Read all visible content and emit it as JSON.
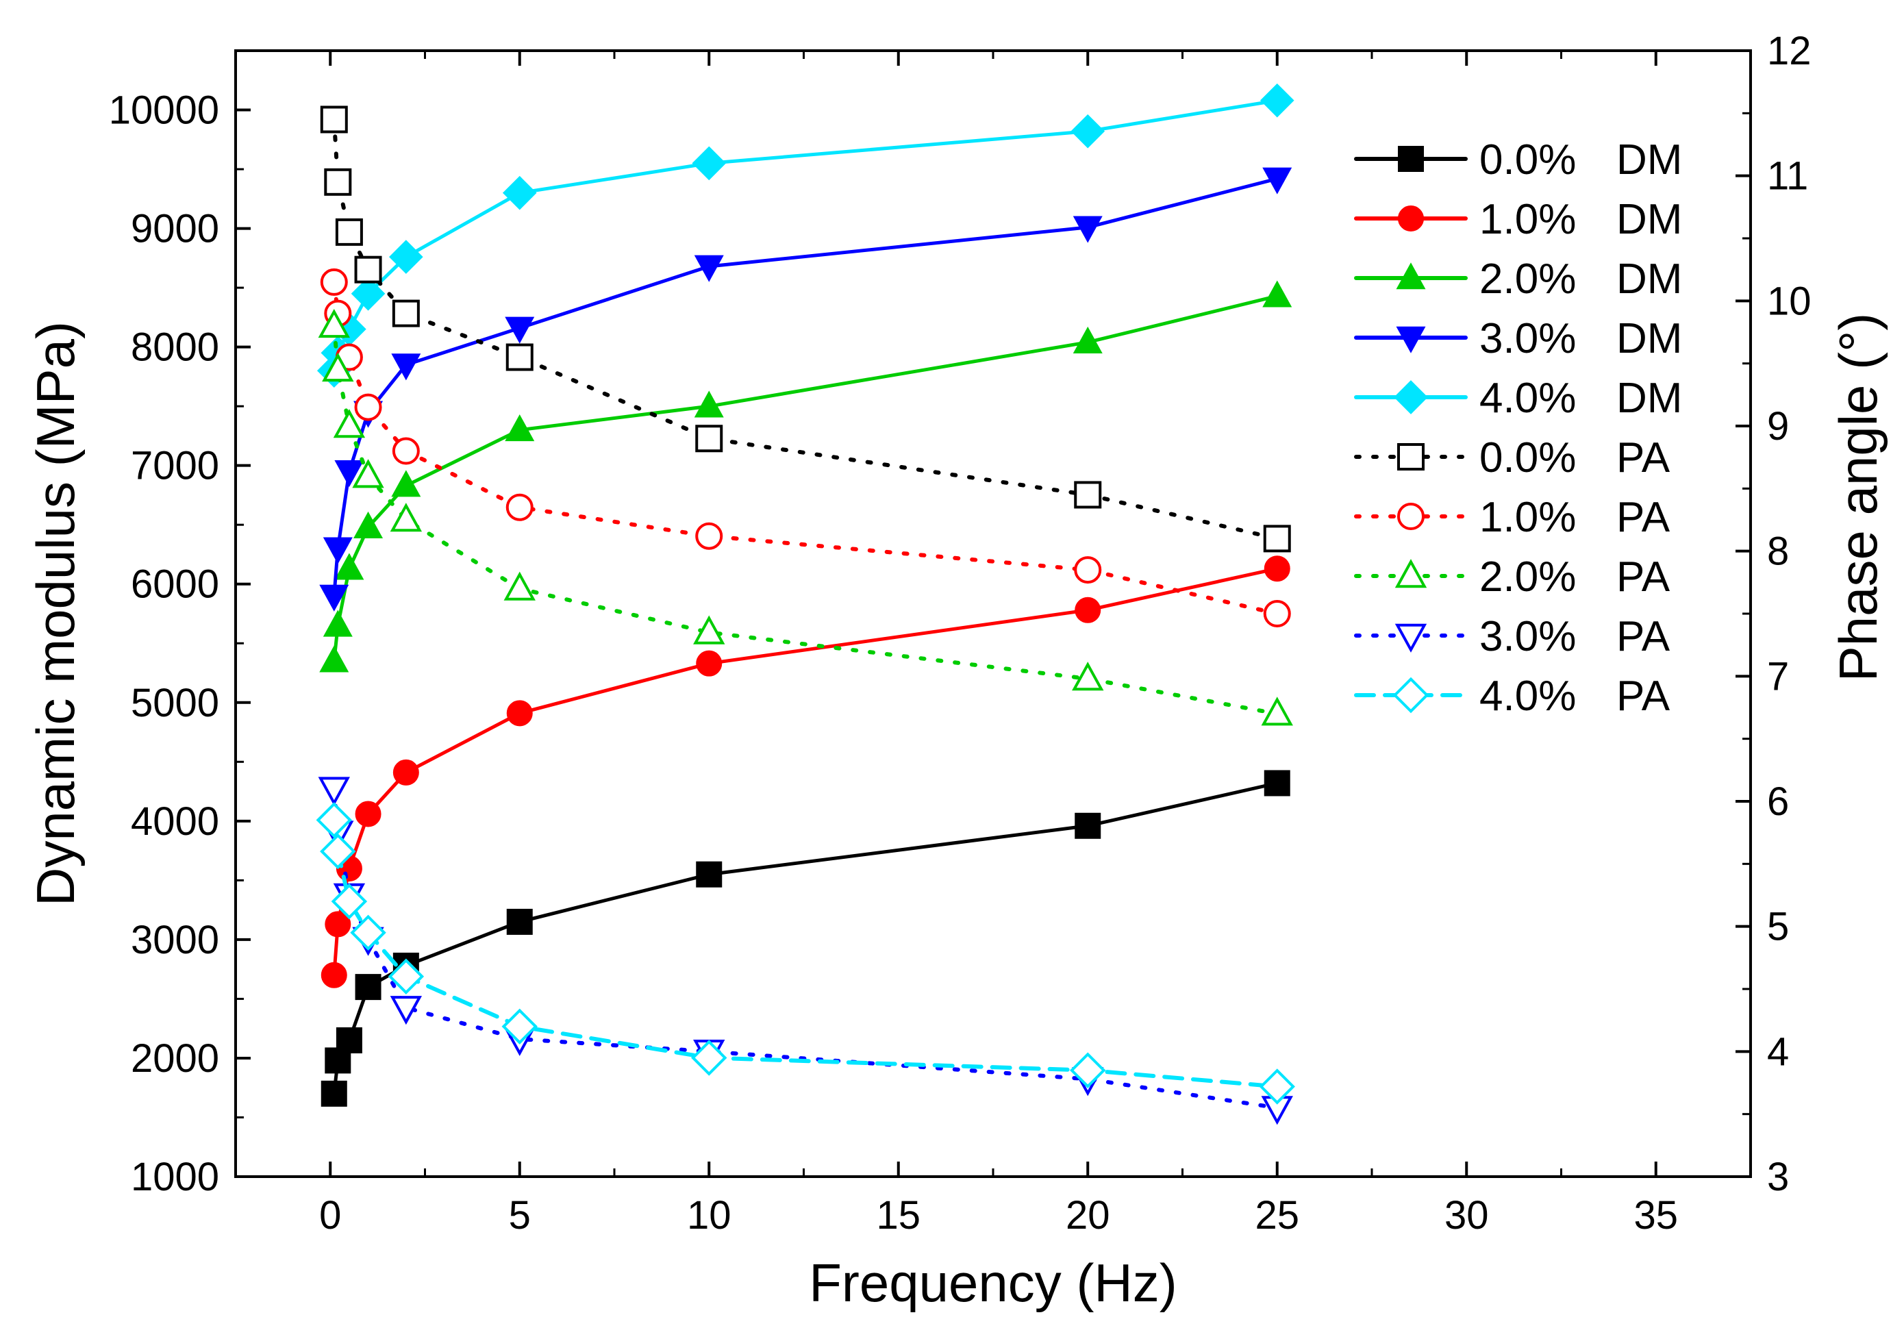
{
  "chart_data": {
    "type": "line",
    "title": "",
    "xlabel": "Frequency (Hz)",
    "ylabel": "Dynamic modulus (MPa)",
    "y2label": "Phase angle (°)",
    "xlim": [
      -2.5,
      37.5
    ],
    "ylim": [
      1000,
      10500
    ],
    "y2lim": [
      3,
      12
    ],
    "x_ticks": [
      0,
      5,
      10,
      15,
      20,
      25,
      30,
      35
    ],
    "y_ticks": [
      1000,
      2000,
      3000,
      4000,
      5000,
      6000,
      7000,
      8000,
      9000,
      10000
    ],
    "y2_ticks": [
      3,
      4,
      5,
      6,
      7,
      8,
      9,
      10,
      11,
      12
    ],
    "x": [
      0.1,
      0.2,
      0.5,
      1,
      2,
      5,
      10,
      20,
      25
    ],
    "legend_position": "top-right",
    "series": [
      {
        "name": "0.0%",
        "tag": "DM",
        "axis": "left",
        "color": "#000000",
        "marker": "square",
        "filled": true,
        "dash": "solid",
        "values": [
          1700,
          1980,
          2150,
          2600,
          2780,
          3150,
          3550,
          3960,
          4320
        ]
      },
      {
        "name": "1.0%",
        "tag": "DM",
        "axis": "left",
        "color": "#ff0000",
        "marker": "circle",
        "filled": true,
        "dash": "solid",
        "values": [
          2700,
          3130,
          3600,
          4060,
          4410,
          4910,
          5330,
          5780,
          6130
        ]
      },
      {
        "name": "2.0%",
        "tag": "DM",
        "axis": "left",
        "color": "#00cc00",
        "marker": "triangle-up",
        "filled": true,
        "dash": "solid",
        "values": [
          5350,
          5650,
          6130,
          6480,
          6830,
          7300,
          7500,
          8040,
          8430
        ]
      },
      {
        "name": "3.0%",
        "tag": "DM",
        "axis": "left",
        "color": "#0000ff",
        "marker": "triangle-down",
        "filled": true,
        "dash": "solid",
        "values": [
          5900,
          6300,
          6950,
          7450,
          7850,
          8160,
          8680,
          9010,
          9420
        ]
      },
      {
        "name": "4.0%",
        "tag": "DM",
        "axis": "left",
        "color": "#00e5ff",
        "marker": "diamond",
        "filled": true,
        "dash": "solid",
        "values": [
          7800,
          7950,
          8150,
          8450,
          8760,
          9300,
          9550,
          9820,
          10080
        ]
      },
      {
        "name": "0.0%",
        "tag": "PA",
        "axis": "right",
        "color": "#000000",
        "marker": "square",
        "filled": false,
        "dash": "dot",
        "values": [
          11.45,
          10.95,
          10.55,
          10.25,
          9.9,
          9.55,
          8.9,
          8.45,
          8.1
        ]
      },
      {
        "name": "1.0%",
        "tag": "PA",
        "axis": "right",
        "color": "#ff0000",
        "marker": "circle",
        "filled": false,
        "dash": "dot",
        "values": [
          10.15,
          9.9,
          9.55,
          9.15,
          8.8,
          8.35,
          8.12,
          7.85,
          7.5
        ]
      },
      {
        "name": "2.0%",
        "tag": "PA",
        "axis": "right",
        "color": "#00cc00",
        "marker": "triangle-up",
        "filled": false,
        "dash": "dot",
        "values": [
          9.8,
          9.45,
          9.0,
          8.6,
          8.25,
          7.7,
          7.35,
          6.98,
          6.7
        ]
      },
      {
        "name": "3.0%",
        "tag": "PA",
        "axis": "right",
        "color": "#0000ff",
        "marker": "triangle-down",
        "filled": false,
        "dash": "dot",
        "values": [
          6.1,
          5.75,
          5.25,
          4.9,
          4.35,
          4.1,
          4.0,
          3.78,
          3.55
        ]
      },
      {
        "name": "4.0%",
        "tag": "PA",
        "axis": "right",
        "color": "#00e5ff",
        "marker": "diamond",
        "filled": false,
        "dash": "dash",
        "values": [
          5.85,
          5.6,
          5.2,
          4.95,
          4.6,
          4.2,
          3.95,
          3.85,
          3.72
        ]
      }
    ]
  }
}
